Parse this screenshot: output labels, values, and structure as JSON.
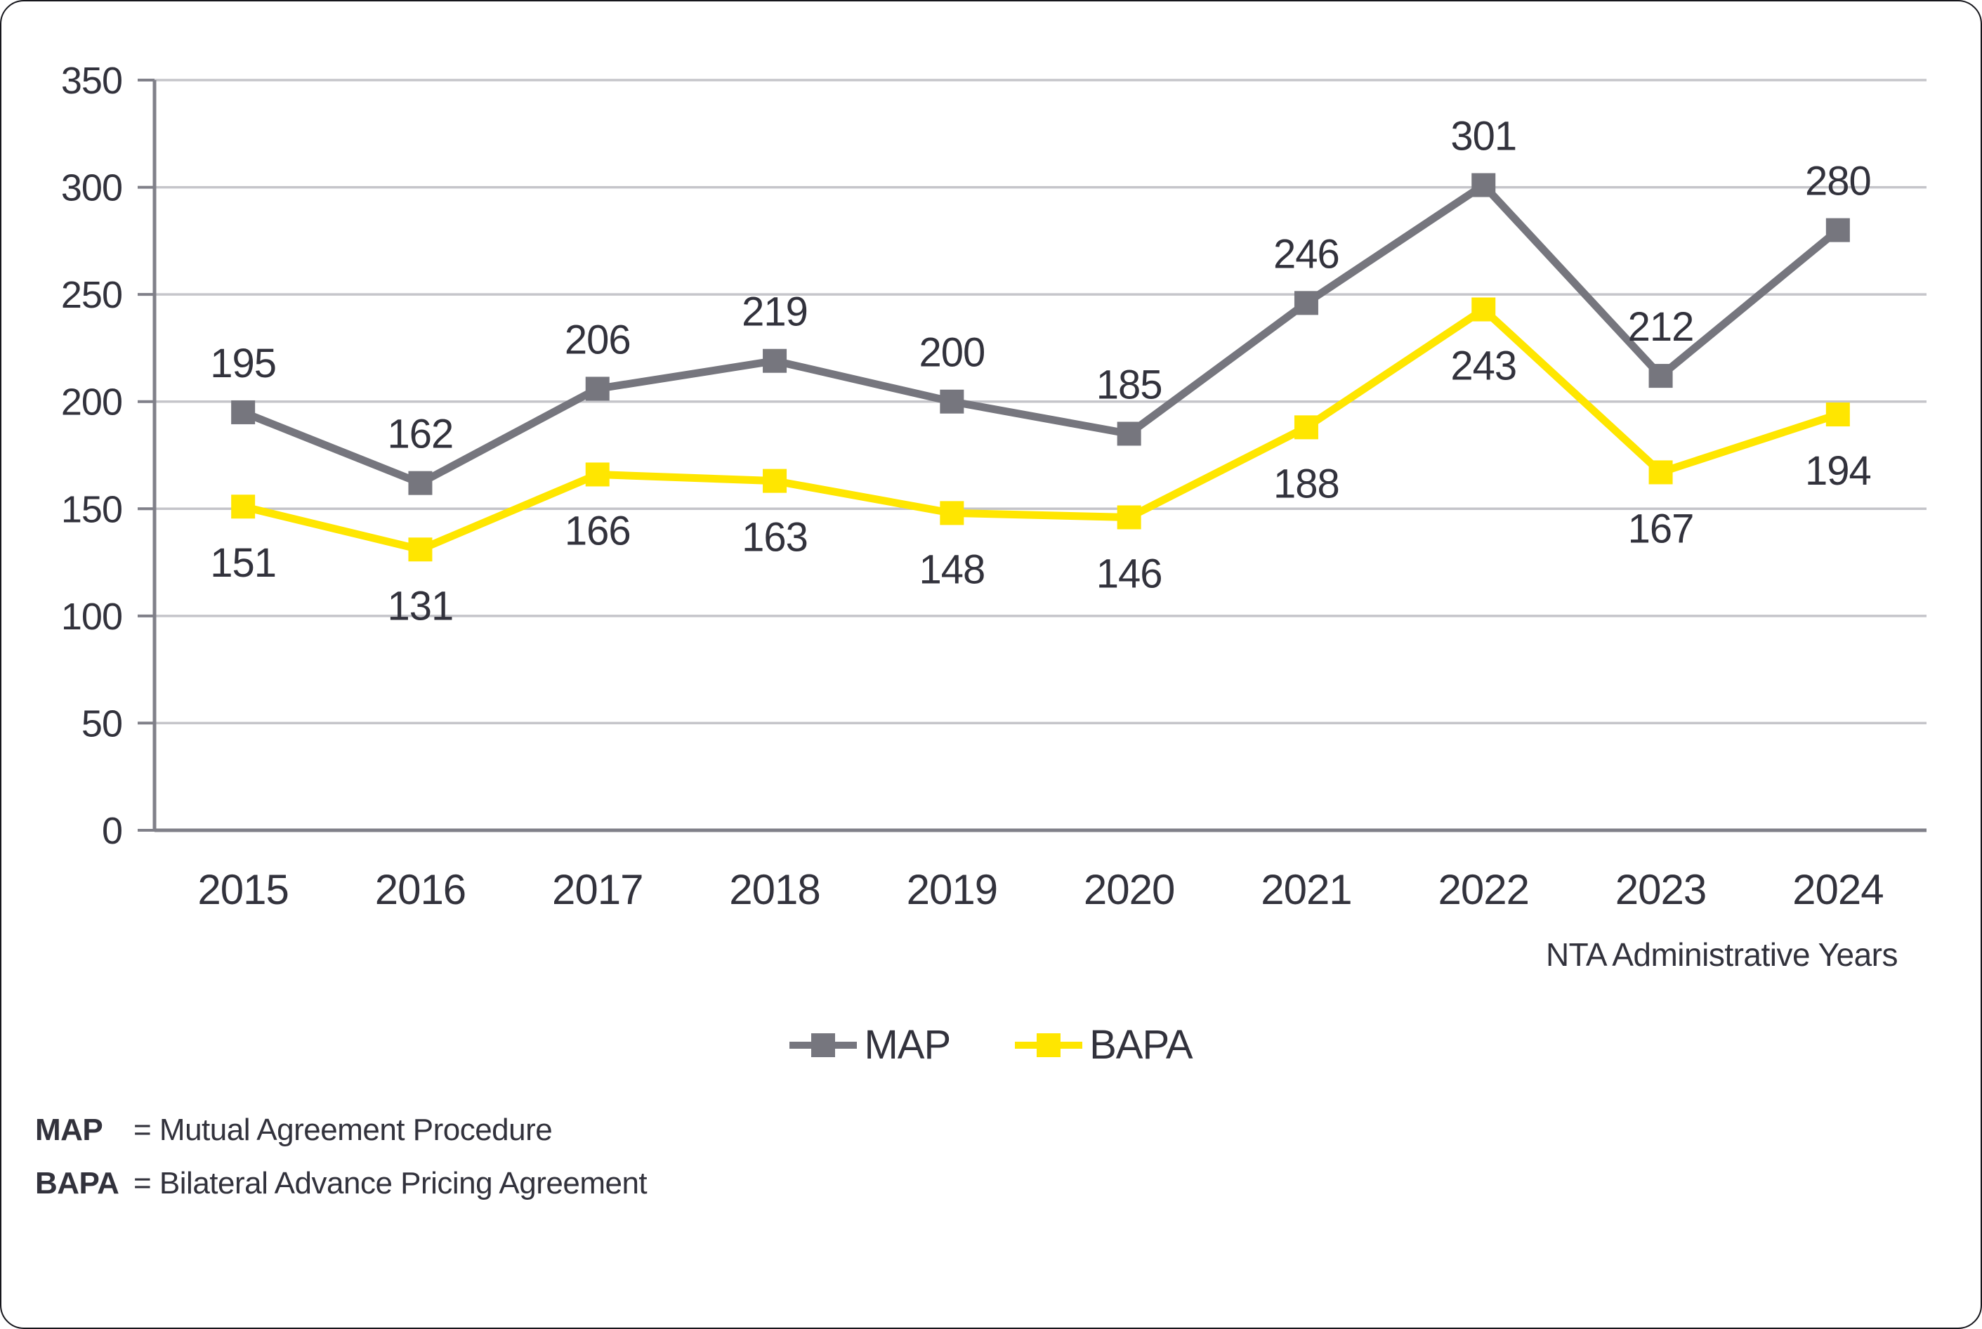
{
  "chart_data": {
    "type": "line",
    "title": "",
    "categories": [
      "2015",
      "2016",
      "2017",
      "2018",
      "2019",
      "2020",
      "2021",
      "2022",
      "2023",
      "2024"
    ],
    "series": [
      {
        "name": "MAP",
        "color": "#76767E",
        "values": [
          195,
          162,
          206,
          219,
          200,
          185,
          246,
          301,
          212,
          280
        ],
        "label_position": "above"
      },
      {
        "name": "BAPA",
        "color": "#FFE600",
        "values": [
          151,
          131,
          166,
          163,
          148,
          146,
          188,
          243,
          167,
          194
        ],
        "label_position": "below"
      }
    ],
    "xlabel": "NTA Administrative Years",
    "ylabel": "",
    "ylim": [
      0,
      350
    ],
    "ytick_step": 50,
    "grid": "horizontal",
    "legend_position": "bottom-center"
  },
  "colors": {
    "text": "#32323C",
    "grid": "#C5C5CA",
    "axis": "#808089",
    "background": "#FFFFFF"
  },
  "footnotes": [
    {
      "term": "MAP",
      "definition": "= Mutual Agreement Procedure"
    },
    {
      "term": "BAPA",
      "definition": "= Bilateral Advance Pricing Agreement"
    }
  ]
}
